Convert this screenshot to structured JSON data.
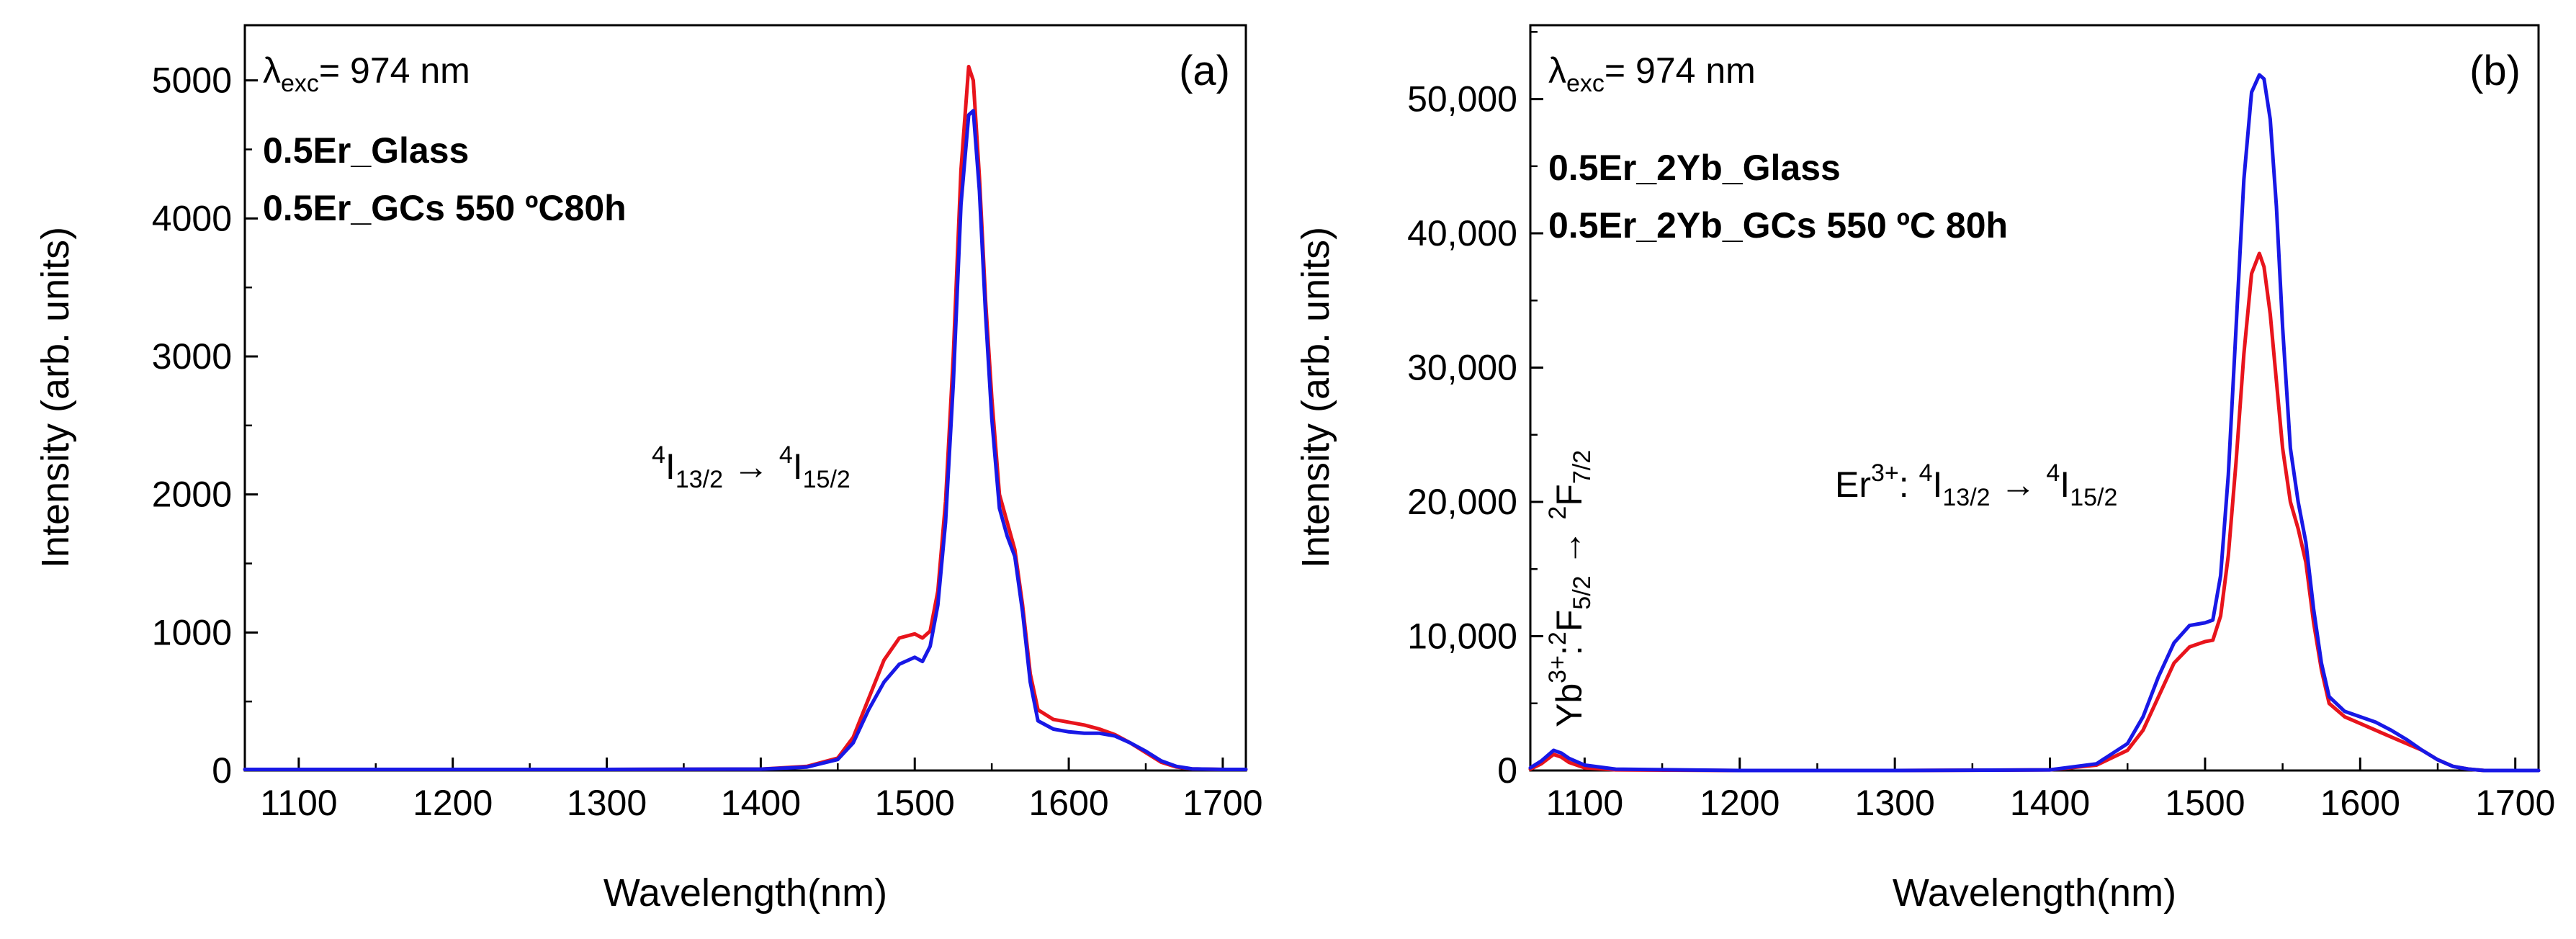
{
  "chart_data": [
    {
      "type": "line",
      "panel_label": "(a)",
      "xlabel": "Wavelength(nm)",
      "ylabel": "Intensity (arb. units)",
      "xlim": [
        1065,
        1715
      ],
      "ylim": [
        0,
        5400
      ],
      "x_ticks": [
        1100,
        1200,
        1300,
        1400,
        1500,
        1600,
        1700
      ],
      "x_tick_labels": [
        "1100",
        "1200",
        "1300",
        "1400",
        "1500",
        "1600",
        "1700"
      ],
      "y_ticks": [
        0,
        1000,
        2000,
        3000,
        4000,
        5000
      ],
      "y_tick_labels": [
        "0",
        "1000",
        "2000",
        "3000",
        "4000",
        "5000"
      ],
      "excitation_label": "λexc= 974 nm",
      "annotation": "4I13/2 → 4I15/2",
      "series": [
        {
          "name": "0.5Er_Glass",
          "color": "#e8141c",
          "x": [
            1065,
            1200,
            1300,
            1400,
            1430,
            1450,
            1460,
            1470,
            1480,
            1490,
            1500,
            1505,
            1510,
            1515,
            1520,
            1525,
            1530,
            1535,
            1538,
            1542,
            1546,
            1550,
            1555,
            1560,
            1565,
            1570,
            1575,
            1580,
            1590,
            1600,
            1610,
            1620,
            1630,
            1640,
            1650,
            1660,
            1670,
            1680,
            1700,
            1715
          ],
          "y": [
            8,
            8,
            8,
            10,
            30,
            90,
            240,
            520,
            800,
            960,
            990,
            960,
            1010,
            1300,
            1950,
            3000,
            4350,
            5100,
            5000,
            4300,
            3400,
            2700,
            2000,
            1800,
            1600,
            1200,
            700,
            440,
            370,
            350,
            330,
            300,
            260,
            200,
            130,
            60,
            25,
            12,
            8,
            8
          ]
        },
        {
          "name": "0.5Er_GCs 550 ºC80h",
          "color": "#1818e6",
          "x": [
            1065,
            1200,
            1300,
            1400,
            1430,
            1450,
            1460,
            1470,
            1480,
            1490,
            1500,
            1505,
            1510,
            1515,
            1520,
            1525,
            1530,
            1535,
            1538,
            1542,
            1546,
            1550,
            1555,
            1560,
            1565,
            1570,
            1575,
            1580,
            1590,
            1600,
            1610,
            1620,
            1630,
            1640,
            1650,
            1660,
            1670,
            1680,
            1700,
            1715
          ],
          "y": [
            8,
            8,
            8,
            10,
            25,
            80,
            200,
            440,
            640,
            770,
            820,
            790,
            900,
            1200,
            1800,
            2800,
            4100,
            4750,
            4780,
            4200,
            3300,
            2550,
            1900,
            1700,
            1550,
            1150,
            640,
            360,
            300,
            280,
            270,
            270,
            250,
            200,
            140,
            70,
            30,
            12,
            8,
            8
          ]
        }
      ]
    },
    {
      "type": "line",
      "panel_label": "(b)",
      "xlabel": "Wavelength(nm)",
      "ylabel": "Intensity (arb. units)",
      "xlim": [
        1065,
        1715
      ],
      "ylim": [
        0,
        55500
      ],
      "x_ticks": [
        1100,
        1200,
        1300,
        1400,
        1500,
        1600,
        1700
      ],
      "x_tick_labels": [
        "1100",
        "1200",
        "1300",
        "1400",
        "1500",
        "1600",
        "1700"
      ],
      "y_ticks": [
        0,
        10000,
        20000,
        30000,
        40000,
        50000
      ],
      "y_tick_labels": [
        "0",
        "10,000",
        "20,000",
        "30,000",
        "40,000",
        "50,000"
      ],
      "excitation_label": "λexc= 974 nm",
      "annotation": "Er3+: 4I13/2 → 4I15/2",
      "annotation_vertical": "Yb3+:2F5/2 → 2F7/2",
      "series": [
        {
          "name": "0.5Er_2Yb_Glass",
          "color": "#e8141c",
          "x": [
            1065,
            1072,
            1080,
            1085,
            1090,
            1100,
            1120,
            1200,
            1300,
            1400,
            1430,
            1450,
            1460,
            1470,
            1480,
            1490,
            1500,
            1505,
            1510,
            1515,
            1520,
            1525,
            1530,
            1535,
            1538,
            1542,
            1546,
            1550,
            1555,
            1560,
            1565,
            1570,
            1575,
            1580,
            1590,
            1600,
            1610,
            1620,
            1630,
            1640,
            1650,
            1660,
            1670,
            1680,
            1700,
            1715
          ],
          "y": [
            100,
            500,
            1200,
            1000,
            600,
            200,
            50,
            0,
            0,
            50,
            400,
            1500,
            3000,
            5500,
            8000,
            9200,
            9600,
            9700,
            11500,
            16000,
            23000,
            31000,
            37000,
            38500,
            37500,
            34000,
            29000,
            24000,
            20000,
            18000,
            15500,
            11000,
            7500,
            5000,
            4000,
            3500,
            3000,
            2500,
            2000,
            1500,
            800,
            300,
            100,
            0,
            0,
            0
          ]
        },
        {
          "name": "0.5Er_2Yb_GCs 550 ºC 80h",
          "color": "#1818e6",
          "x": [
            1065,
            1072,
            1080,
            1085,
            1090,
            1100,
            1120,
            1200,
            1300,
            1400,
            1430,
            1450,
            1460,
            1470,
            1480,
            1490,
            1500,
            1505,
            1510,
            1515,
            1520,
            1525,
            1530,
            1535,
            1538,
            1542,
            1546,
            1550,
            1555,
            1560,
            1565,
            1570,
            1575,
            1580,
            1590,
            1600,
            1610,
            1620,
            1630,
            1640,
            1650,
            1660,
            1670,
            1680,
            1700,
            1715
          ],
          "y": [
            200,
            700,
            1500,
            1300,
            900,
            400,
            100,
            0,
            0,
            50,
            500,
            2000,
            4000,
            7000,
            9500,
            10800,
            11000,
            11200,
            14500,
            22000,
            33000,
            44000,
            50500,
            51800,
            51500,
            48500,
            42000,
            33000,
            24000,
            20000,
            17000,
            12000,
            8000,
            5500,
            4400,
            4000,
            3600,
            3000,
            2300,
            1500,
            800,
            300,
            100,
            0,
            0,
            0
          ]
        }
      ]
    }
  ]
}
